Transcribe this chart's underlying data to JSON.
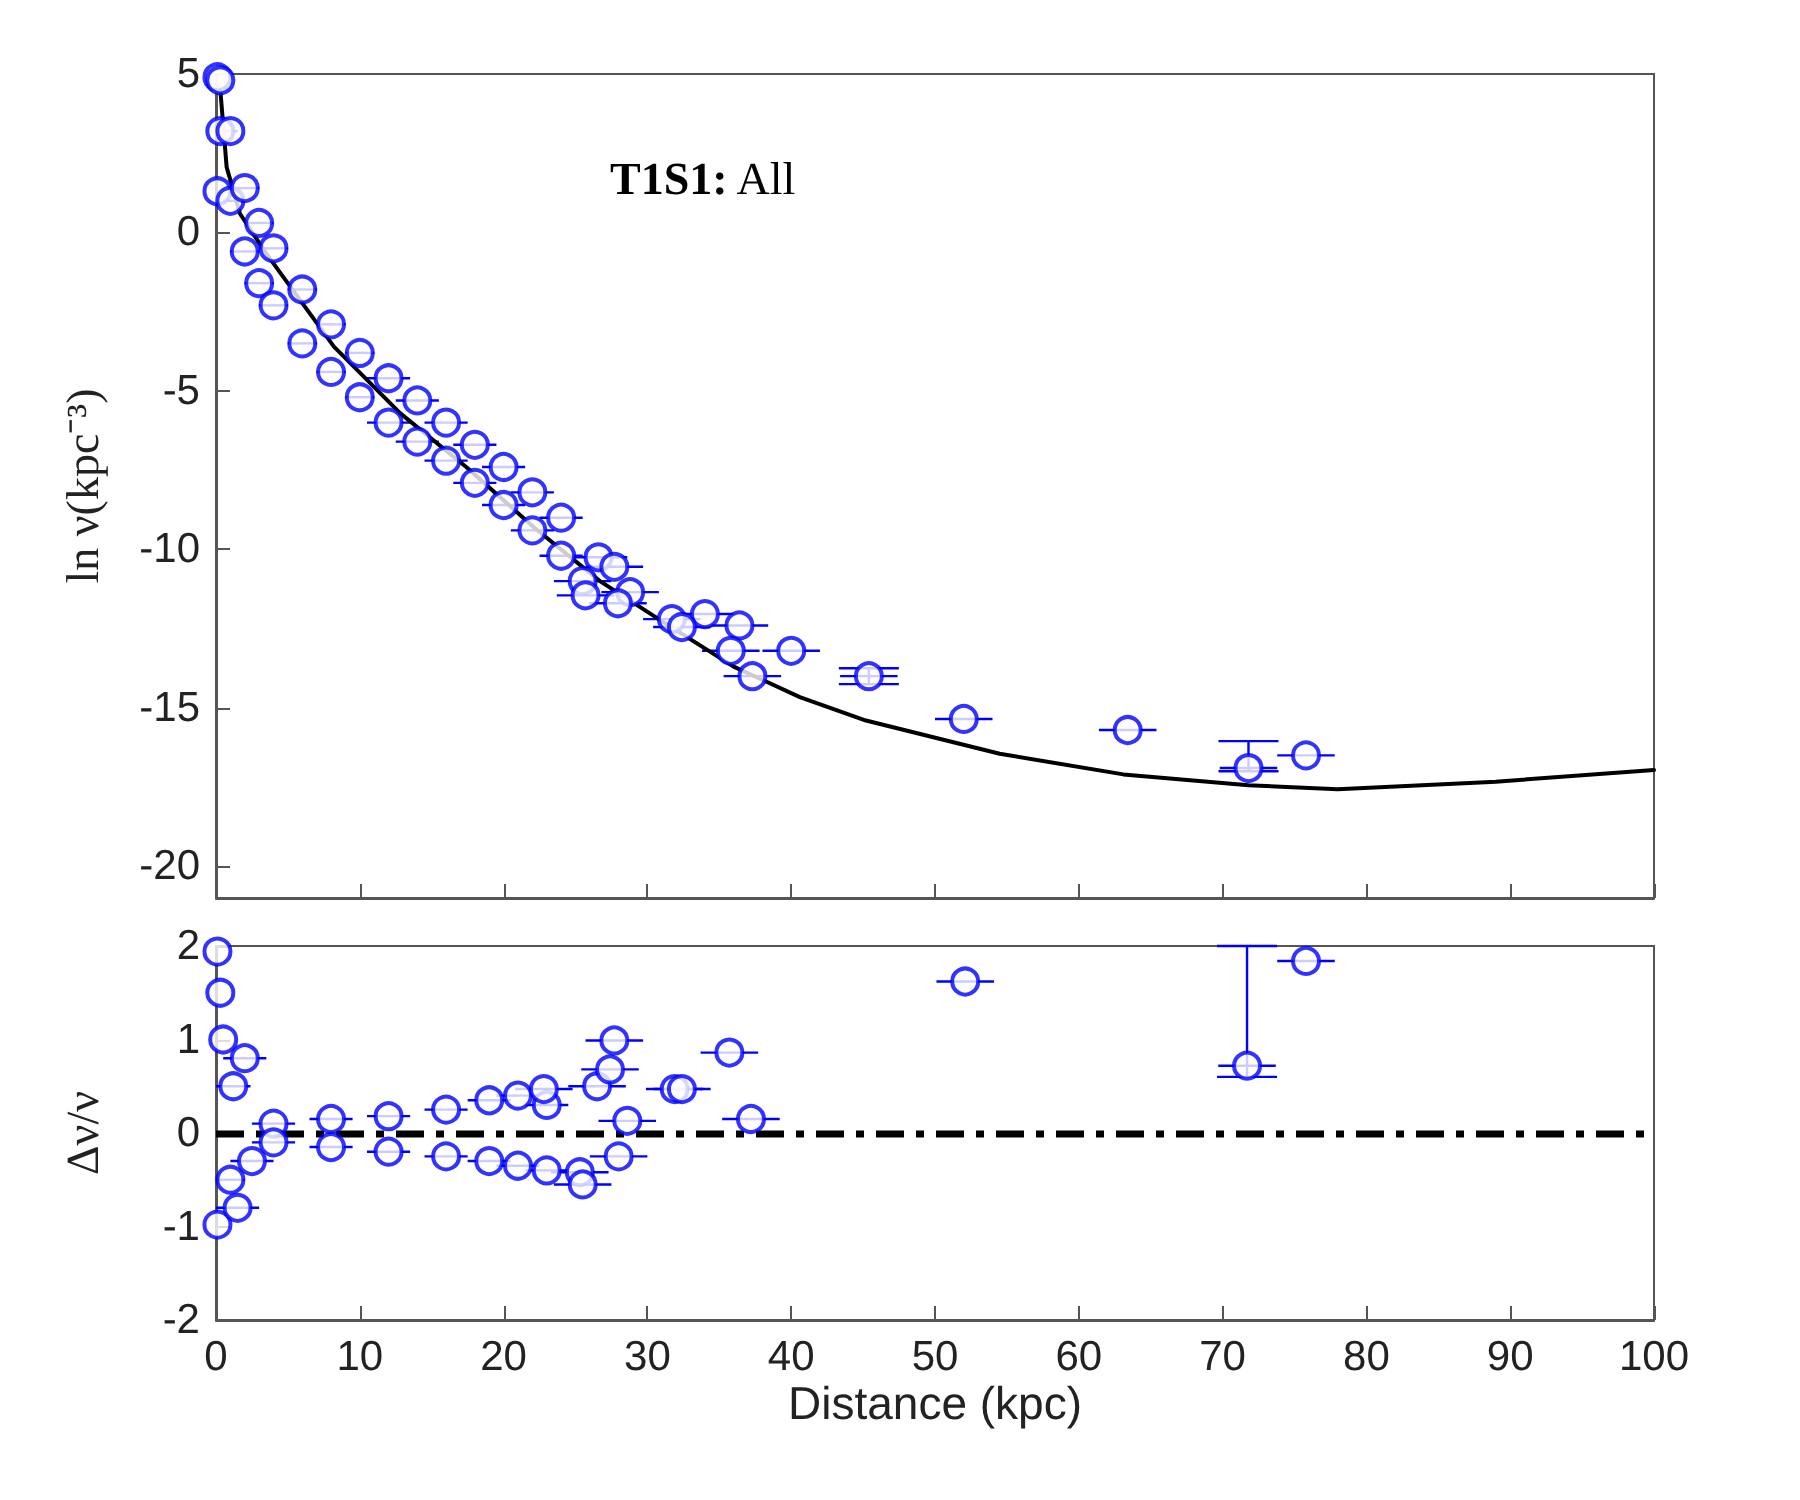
{
  "chart_data": [
    {
      "type": "scatter",
      "ylabel": "ln ν(kpc⁻³)",
      "annotations": [
        "T1S1: All"
      ],
      "xlim": [
        0,
        100
      ],
      "xticks": [
        0,
        10,
        20,
        30,
        40,
        50,
        60,
        70,
        80,
        90,
        100
      ],
      "ylim": [
        -21,
        5
      ],
      "yticks": [
        -20,
        -15,
        -10,
        -5,
        0,
        5
      ],
      "tick_labels": "y",
      "grid": false,
      "series": [
        {
          "marker": "circle",
          "color": "#0000ff",
          "x": [
            0.1,
            0.1,
            0.3,
            0.3,
            1,
            1,
            2,
            2,
            3,
            3,
            4,
            4,
            6,
            6,
            8,
            8,
            10,
            10,
            12,
            12,
            14,
            14,
            16,
            16,
            18,
            18,
            20,
            20,
            22,
            22,
            24,
            24,
            26.6,
            27.7,
            25.5,
            25.7,
            28.8,
            27.95,
            34.0,
            31.7,
            32.4,
            36.4,
            35.8,
            40.0,
            37.3,
            45.4,
            52.0,
            63.4,
            71.8,
            75.8
          ],
          "values": [
            4.9,
            1.3,
            4.8,
            3.2,
            3.2,
            1.0,
            1.4,
            -0.6,
            0.3,
            -1.6,
            -0.5,
            -2.3,
            -1.8,
            -3.5,
            -2.9,
            -4.4,
            -3.8,
            -5.2,
            -4.6,
            -6.0,
            -5.3,
            -6.6,
            -6.0,
            -7.2,
            -6.7,
            -7.9,
            -7.4,
            -8.6,
            -8.2,
            -9.4,
            -9.0,
            -10.2,
            -10.25,
            -10.55,
            -11.0,
            -11.45,
            -11.35,
            -11.7,
            -12.04,
            -12.2,
            -12.45,
            -12.4,
            -13.2,
            -13.2,
            -14.0,
            -14.0,
            -15.35,
            -15.7,
            -16.9,
            -16.5
          ],
          "xerrors": [
            null,
            null,
            null,
            null,
            0.5,
            0.5,
            1,
            1,
            1,
            1,
            1,
            1,
            1,
            1,
            1,
            1,
            1,
            1,
            1.5,
            1.5,
            1.5,
            1.5,
            1.5,
            1.5,
            1.5,
            1.5,
            1.5,
            1.5,
            1.5,
            1.5,
            1.5,
            1.5,
            2,
            2,
            2,
            2,
            2,
            2,
            2,
            2,
            2,
            2,
            2,
            2,
            2,
            2,
            2,
            2,
            2,
            2
          ],
          "errors": [
            null,
            null,
            null,
            null,
            null,
            null,
            null,
            null,
            null,
            null,
            null,
            null,
            null,
            null,
            null,
            null,
            null,
            null,
            null,
            null,
            null,
            null,
            null,
            null,
            null,
            null,
            null,
            null,
            null,
            null,
            null,
            null,
            null,
            null,
            null,
            null,
            null,
            null,
            null,
            null,
            null,
            null,
            null,
            null,
            null,
            0.25,
            null,
            null,
            [
              -17.0,
              -16.05
            ],
            null
          ]
        },
        {
          "type": "line",
          "marker": "none",
          "line_style": "solid",
          "color": "#000000",
          "x": [
            0.1,
            0.3,
            0.74,
            1.67,
            3.5,
            8.2,
            12.8,
            17.4,
            22.1,
            26.7,
            31.3,
            36.0,
            40.6,
            45.2,
            54.5,
            63.1,
            71.8,
            78.0,
            89,
            100
          ],
          "values": [
            4.6,
            4.5,
            2.06,
            0.59,
            -0.67,
            -3.6,
            -5.7,
            -7.4,
            -9.3,
            -11.0,
            -12.35,
            -13.7,
            -14.66,
            -15.4,
            -16.45,
            -17.1,
            -17.44,
            -17.57,
            -17.33,
            -16.96
          ]
        }
      ]
    },
    {
      "type": "scatter",
      "xlabel": "Distance (kpc)",
      "ylabel": "Δν/ν",
      "xlim": [
        0,
        100
      ],
      "xticks": [
        0,
        10,
        20,
        30,
        40,
        50,
        60,
        70,
        80,
        90,
        100
      ],
      "ylim": [
        -2,
        2
      ],
      "yticks": [
        -2,
        -1,
        0,
        1,
        2
      ],
      "grid": false,
      "ref_lines": [
        {
          "axis": "y",
          "value": 0,
          "color": "#000000",
          "line_style": "dashed"
        }
      ],
      "series": [
        {
          "marker": "circle",
          "color": "#0000ff",
          "x": [
            0.1,
            0.1,
            0.3,
            0.5,
            1.2,
            1,
            1.5,
            2,
            2.5,
            4,
            4,
            8,
            8,
            12,
            12,
            16,
            16,
            19,
            19,
            21,
            21,
            23,
            23,
            22.8,
            26.5,
            27.4,
            27.7,
            25.3,
            25.5,
            28.0,
            28.6,
            31.9,
            32.4,
            35.7,
            37.2,
            52.1,
            71.7,
            75.8
          ],
          "values": [
            1.94,
            -0.98,
            1.5,
            1.0,
            0.5,
            -0.5,
            -0.8,
            0.8,
            -0.3,
            0.1,
            -0.1,
            0.15,
            -0.15,
            0.18,
            -0.2,
            0.25,
            -0.25,
            0.35,
            -0.3,
            0.4,
            -0.35,
            0.3,
            -0.4,
            0.47,
            0.5,
            0.68,
            0.99,
            -0.42,
            -0.55,
            -0.25,
            0.13,
            0.47,
            0.47,
            0.86,
            0.15,
            1.62,
            0.72,
            1.84
          ],
          "xerrors": [
            null,
            null,
            null,
            null,
            1.2,
            1,
            1.5,
            1.5,
            1.5,
            1.5,
            1.5,
            1.5,
            1.5,
            1.5,
            1.5,
            1.5,
            1.5,
            1.5,
            1.5,
            1.5,
            1.5,
            1.5,
            1.5,
            2,
            2,
            2,
            2,
            2,
            2,
            2,
            2,
            2,
            2,
            2,
            2,
            2,
            2,
            2
          ],
          "errors": [
            null,
            null,
            null,
            null,
            null,
            null,
            null,
            null,
            null,
            null,
            null,
            null,
            null,
            null,
            null,
            null,
            null,
            null,
            null,
            null,
            null,
            null,
            null,
            null,
            null,
            null,
            null,
            null,
            null,
            null,
            null,
            null,
            null,
            null,
            null,
            null,
            [
              0.6,
              2
            ],
            null
          ]
        }
      ]
    }
  ]
}
